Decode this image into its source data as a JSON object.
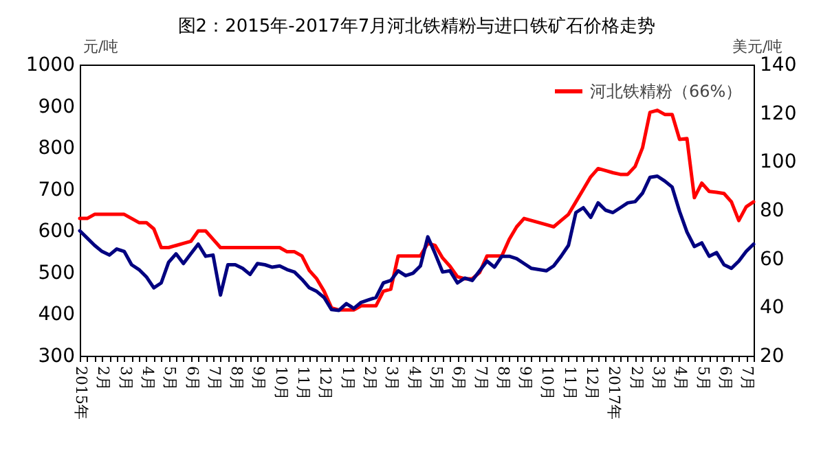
{
  "chart_data": {
    "type": "line",
    "title": "图2：2015年-2017年7月河北铁精粉与进口铁矿石价格走势",
    "ylabel": "元/吨",
    "y2label": "美元/吨",
    "categories": [
      "2015年",
      null,
      null,
      "2月",
      null,
      null,
      "3月",
      null,
      null,
      "4月",
      null,
      null,
      "5月",
      null,
      null,
      "6月",
      null,
      null,
      "7月",
      null,
      null,
      "8月",
      null,
      null,
      "9月",
      null,
      null,
      "10月",
      null,
      null,
      "11月",
      null,
      null,
      "12月",
      null,
      null,
      "1月",
      null,
      null,
      "2月",
      null,
      null,
      "3月",
      null,
      null,
      "4月",
      null,
      null,
      "5月",
      null,
      null,
      "6月",
      null,
      null,
      "7月",
      null,
      null,
      "8月",
      null,
      null,
      "9月",
      null,
      null,
      "10月",
      null,
      null,
      "11月",
      null,
      null,
      "12月",
      null,
      null,
      "2017年",
      null,
      null,
      "2月",
      null,
      null,
      "3月",
      null,
      null,
      "4月",
      null,
      null,
      "5月",
      null,
      null,
      "6月",
      null,
      null,
      "7月",
      null
    ],
    "series": [
      {
        "name": "河北铁精粉（66%）",
        "color": "#ff0000",
        "values": [
          630,
          630,
          640,
          640,
          640,
          640,
          640,
          630,
          620,
          620,
          605,
          560,
          560,
          565,
          570,
          575,
          600,
          600,
          580,
          560,
          560,
          560,
          560,
          560,
          560,
          560,
          560,
          560,
          550,
          550,
          540,
          505,
          485,
          455,
          415,
          410,
          410,
          410,
          420,
          420,
          420,
          455,
          460,
          540,
          540,
          540,
          540,
          570,
          565,
          535,
          515,
          490,
          485,
          485,
          500,
          540,
          540,
          540,
          580,
          610,
          630,
          625,
          620,
          615,
          610,
          625,
          640,
          670,
          700,
          730,
          750,
          745,
          740,
          736,
          736,
          755,
          800,
          885,
          890,
          880,
          880,
          820,
          822,
          680,
          715,
          695,
          693,
          690,
          670,
          625,
          658,
          670
        ]
      },
      {
        "color": "#000080",
        "axis": "y2",
        "values": [
          71.5,
          68.5,
          65.5,
          63,
          61.5,
          64,
          63,
          57.5,
          55.5,
          52.5,
          48,
          50,
          58.5,
          62,
          58,
          62,
          66,
          61,
          61.5,
          45,
          57.5,
          57.5,
          56,
          53.5,
          58,
          57.5,
          56.5,
          57,
          55.5,
          54.5,
          51.5,
          48,
          46.5,
          44,
          39,
          38.7,
          41.5,
          39.5,
          42,
          43,
          44,
          50,
          51,
          55,
          53,
          54,
          57,
          69,
          62,
          54.5,
          55,
          50,
          52,
          51,
          55,
          59,
          56.5,
          61,
          61,
          60,
          58,
          56,
          55.5,
          55,
          57,
          61,
          65.5,
          79,
          81,
          77,
          83,
          80,
          79,
          81,
          83,
          83.5,
          87,
          93.5,
          94,
          92,
          89.5,
          79.5,
          71,
          65,
          66.5,
          61,
          62.5,
          57.5,
          56,
          59,
          63,
          66
        ]
      }
    ],
    "ylim": [
      300,
      1000
    ],
    "yticks": [
      300,
      400,
      500,
      600,
      700,
      800,
      900,
      1000
    ],
    "y2lim": [
      20,
      140
    ],
    "y2ticks": [
      20,
      40,
      60,
      80,
      100,
      120,
      140
    ],
    "grid": false,
    "legend": "top right",
    "marker": "none",
    "line_style": "solid"
  }
}
